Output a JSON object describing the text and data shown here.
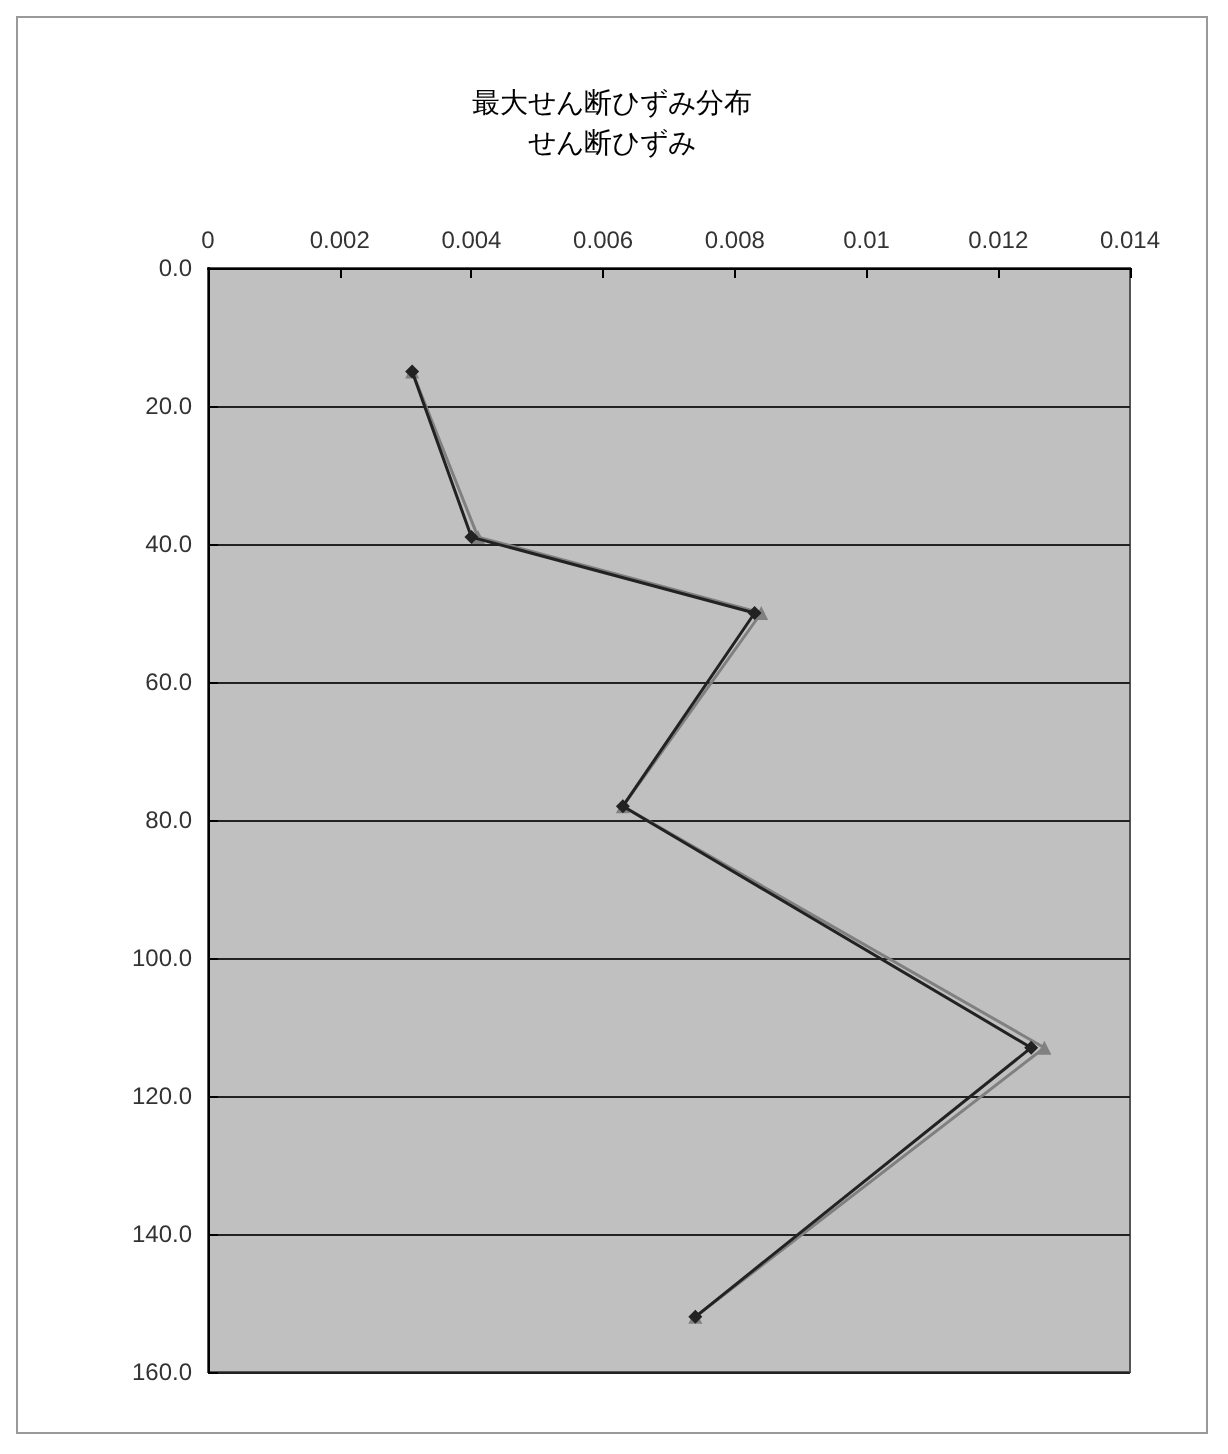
{
  "chart_data": {
    "type": "line",
    "title": "最大せん断ひずみ分布",
    "subtitle": "せん断ひずみ",
    "xlim": [
      0,
      0.014
    ],
    "xticks": [
      0,
      0.002,
      0.004,
      0.006,
      0.008,
      0.01,
      0.012,
      0.014
    ],
    "ylim": [
      160,
      0
    ],
    "yticks": [
      {
        "value": 0,
        "label": "0.0"
      },
      {
        "value": 20,
        "label": "20.0"
      },
      {
        "value": 40,
        "label": "40.0"
      },
      {
        "value": 60,
        "label": "60.0"
      },
      {
        "value": 80,
        "label": "80.0"
      },
      {
        "value": 100,
        "label": "100.0"
      },
      {
        "value": 120,
        "label": "120.0"
      },
      {
        "value": 140,
        "label": "140.0"
      },
      {
        "value": 160,
        "label": "160.0"
      }
    ],
    "grid": "y",
    "series": [
      {
        "color": "#222222",
        "marker": "diamond",
        "x": [
          0.0031,
          0.004,
          0.0083,
          0.0063,
          0.0125,
          0.0074
        ],
        "values": [
          15,
          39,
          50,
          78,
          113,
          152
        ]
      },
      {
        "color": "#808080",
        "marker": "triangle",
        "x": [
          0.0031,
          0.0041,
          0.0084,
          0.0063,
          0.0127,
          0.0074
        ],
        "values": [
          15,
          39,
          50,
          78,
          113,
          152
        ]
      }
    ]
  }
}
